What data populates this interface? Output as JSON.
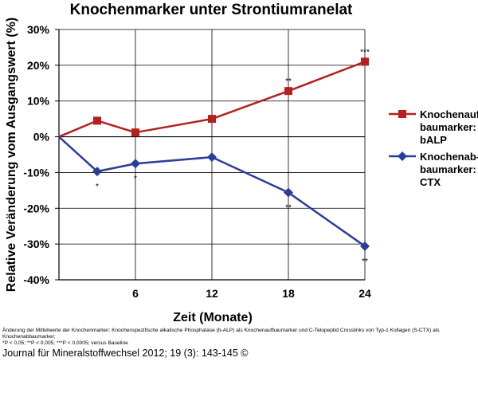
{
  "chart_data": {
    "type": "line",
    "title": "Knochenmarker unter Strontiumranelat",
    "xlabel": "Zeit (Monate)",
    "ylabel": "Relative Veränderung vom Ausgangswert (%)",
    "xlim": [
      0,
      24
    ],
    "ylim": [
      -40,
      30
    ],
    "x_ticks": [
      6,
      12,
      18,
      24
    ],
    "x_tick_labels": [
      "6",
      "12",
      "18",
      "24"
    ],
    "y_ticks": [
      30,
      20,
      10,
      0,
      -10,
      -20,
      -30,
      -40
    ],
    "y_tick_labels": [
      "30%",
      "20%",
      "10%",
      "0%",
      "-10%",
      "-20%",
      "-30%",
      "-40%"
    ],
    "grid": true,
    "legend_position": "right",
    "series": [
      {
        "name": "Knochenaufbaumarker: bALP",
        "legend_lines": [
          "Knochenauf-",
          "baumarker:",
          "bALP"
        ],
        "color": "#b5201e",
        "marker": "square",
        "x": [
          0,
          3,
          6,
          12,
          18,
          24
        ],
        "values": [
          0,
          4.5,
          1.2,
          5.0,
          12.8,
          21.0
        ],
        "significance": [
          "",
          "",
          "",
          "",
          "**",
          "***"
        ],
        "significance_position": "above"
      },
      {
        "name": "Knochenabbaumarker: CTX",
        "legend_lines": [
          "Knochenab-",
          "baumarker:",
          "CTX"
        ],
        "color": "#2b3d99",
        "marker": "diamond",
        "x": [
          0,
          3,
          6,
          12,
          18,
          24
        ],
        "values": [
          0,
          -9.7,
          -7.5,
          -5.7,
          -15.6,
          -30.6
        ],
        "significance": [
          "",
          "*",
          "*",
          "",
          "**",
          "**"
        ],
        "significance_position": "below"
      }
    ]
  },
  "footnote": {
    "line1": "Änderung der Mittelwerte der Knochenmarker: Knochenspezifische alkalische Phosphatase (b-ALP) als Knochenaufbaumarker und C-Telopeptid Crosslinks von Typ-1 Kollagen (S-CTX) als Knochenabbaumarker;",
    "line2": "*P < 0,05; **P < 0,005; ***P < 0,0005; versus Baseline"
  },
  "source": "Journal für Mineralstoffwechsel 2012; 19 (3): 143-145 ©"
}
